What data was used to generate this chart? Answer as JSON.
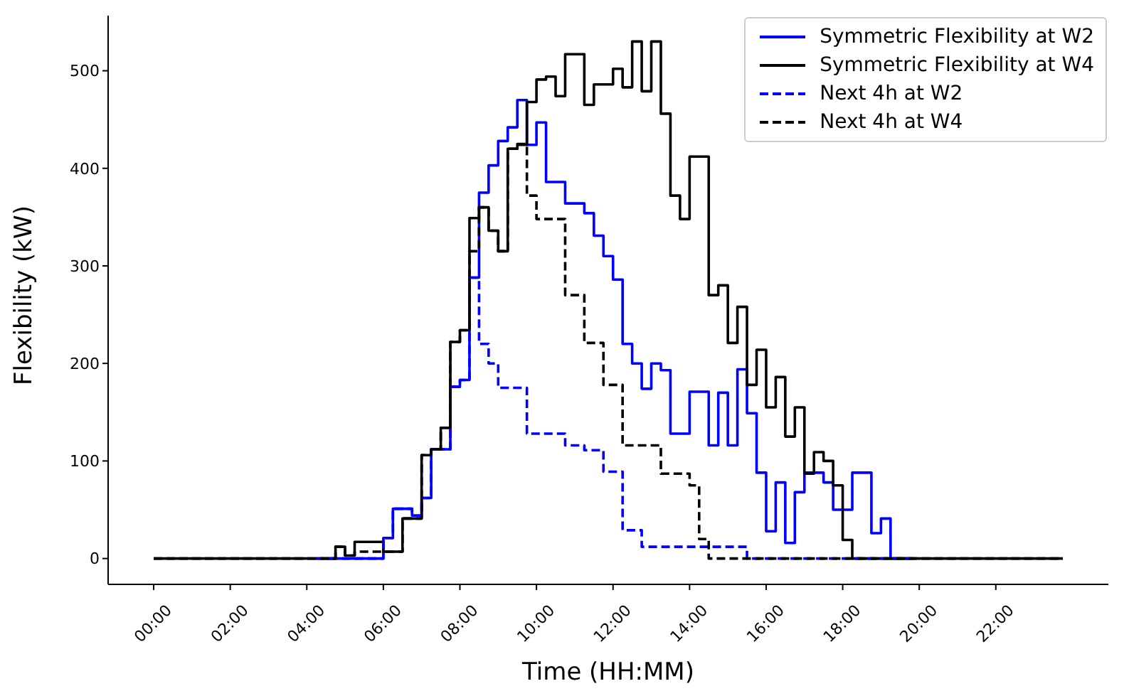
{
  "chart_data": {
    "type": "step",
    "xlabel": "Time (HH:MM)",
    "ylabel": "Flexibility (kW)",
    "x": [
      0,
      0.25,
      0.5,
      0.75,
      1,
      1.25,
      1.5,
      1.75,
      2,
      2.25,
      2.5,
      2.75,
      3,
      3.25,
      3.5,
      3.75,
      4,
      4.25,
      4.5,
      4.75,
      5,
      5.25,
      5.5,
      5.75,
      6,
      6.25,
      6.5,
      6.75,
      7,
      7.25,
      7.5,
      7.75,
      8,
      8.25,
      8.5,
      8.75,
      9,
      9.25,
      9.5,
      9.75,
      10,
      10.25,
      10.5,
      10.75,
      11,
      11.25,
      11.5,
      11.75,
      12,
      12.25,
      12.5,
      12.75,
      13,
      13.25,
      13.5,
      13.75,
      14,
      14.25,
      14.5,
      14.75,
      15,
      15.25,
      15.5,
      15.75,
      16,
      16.25,
      16.5,
      16.75,
      17,
      17.25,
      17.5,
      17.75,
      18,
      18.25,
      18.5,
      18.75,
      19,
      19.25,
      19.5,
      19.75,
      20,
      20.25,
      20.5,
      20.75,
      21,
      21.25,
      21.5,
      21.75,
      22,
      22.25,
      22.5,
      22.75,
      23,
      23.25,
      23.5,
      23.75
    ],
    "series": [
      {
        "name": "Symmetric Flexibility at W2",
        "color": "#0000ff",
        "line_style": "solid",
        "values": [
          null,
          null,
          null,
          null,
          null,
          null,
          null,
          null,
          null,
          null,
          null,
          null,
          null,
          null,
          null,
          null,
          null,
          null,
          0,
          0,
          0,
          0,
          0,
          0,
          21,
          51,
          51,
          44,
          62,
          112,
          112,
          176,
          183,
          288,
          375,
          403,
          428,
          442,
          470,
          424,
          447,
          386,
          386,
          364,
          364,
          354,
          331,
          310,
          286,
          220,
          200,
          174,
          200,
          193,
          128,
          128,
          171,
          171,
          116,
          170,
          116,
          194,
          149,
          88,
          28,
          78,
          16,
          68,
          88,
          88,
          78,
          50,
          50,
          88,
          88,
          26,
          41,
          0,
          0,
          0,
          null,
          null,
          null,
          null,
          null,
          null,
          null,
          null,
          null,
          null,
          null,
          null,
          null,
          null,
          null,
          null
        ]
      },
      {
        "name": "Symmetric Flexibility at W4",
        "color": "#000000",
        "line_style": "solid",
        "values": [
          0,
          0,
          0,
          0,
          0,
          0,
          0,
          0,
          0,
          0,
          0,
          0,
          0,
          0,
          0,
          0,
          0,
          0,
          0,
          12,
          3,
          17,
          17,
          17,
          7,
          7,
          41,
          41,
          106,
          112,
          134,
          222,
          234,
          349,
          360,
          336,
          315,
          420,
          424,
          468,
          491,
          494,
          474,
          517,
          517,
          465,
          486,
          486,
          502,
          483,
          530,
          479,
          530,
          456,
          372,
          348,
          412,
          412,
          270,
          280,
          221,
          258,
          178,
          214,
          155,
          186,
          125,
          155,
          87,
          109,
          100,
          75,
          19,
          0,
          0,
          0,
          0,
          0,
          0,
          0,
          0,
          0,
          0,
          0,
          0,
          0,
          0,
          0,
          0,
          0,
          0,
          0,
          0,
          0,
          0,
          0
        ]
      },
      {
        "name": "Next 4h at W2",
        "color": "#0000ff",
        "line_style": "dashed",
        "values": [
          null,
          null,
          null,
          null,
          null,
          null,
          null,
          null,
          null,
          null,
          null,
          null,
          null,
          null,
          null,
          null,
          null,
          0,
          0,
          0,
          0,
          0,
          0,
          0,
          21,
          51,
          51,
          44,
          62,
          112,
          112,
          176,
          183,
          288,
          220,
          200,
          175,
          175,
          175,
          128,
          128,
          128,
          128,
          116,
          116,
          111,
          111,
          89,
          89,
          29,
          29,
          12,
          12,
          12,
          12,
          12,
          12,
          12,
          12,
          12,
          12,
          12,
          0,
          0,
          0,
          0,
          0,
          0,
          0,
          0,
          0,
          0,
          0,
          0,
          0,
          0,
          0,
          0,
          0,
          0,
          0,
          null,
          null,
          null,
          null,
          null,
          null,
          null,
          null,
          null,
          null,
          null,
          null,
          null,
          null,
          null
        ]
      },
      {
        "name": "Next 4h at W4",
        "color": "#000000",
        "line_style": "dashed",
        "values": [
          0,
          0,
          0,
          0,
          0,
          0,
          0,
          0,
          0,
          0,
          0,
          0,
          0,
          0,
          0,
          0,
          0,
          0,
          0,
          12,
          3,
          7,
          7,
          7,
          7,
          7,
          41,
          41,
          106,
          112,
          134,
          222,
          234,
          315,
          360,
          336,
          315,
          420,
          425,
          372,
          348,
          348,
          348,
          270,
          270,
          221,
          221,
          178,
          178,
          116,
          116,
          116,
          116,
          87,
          87,
          87,
          75,
          20,
          0,
          0,
          0,
          0,
          0,
          0,
          0,
          0,
          0,
          0,
          0,
          0,
          0,
          0,
          0,
          0,
          0,
          0,
          0,
          0,
          0,
          0,
          0,
          0,
          0,
          0,
          0,
          0,
          0,
          0,
          0,
          0,
          0,
          0,
          0,
          0,
          0,
          0
        ]
      }
    ],
    "xlim": [
      -1.19,
      24.94
    ],
    "xticks": [
      {
        "value": 0,
        "label": "00:00"
      },
      {
        "value": 2,
        "label": "02:00"
      },
      {
        "value": 4,
        "label": "04:00"
      },
      {
        "value": 6,
        "label": "06:00"
      },
      {
        "value": 8,
        "label": "08:00"
      },
      {
        "value": 10,
        "label": "10:00"
      },
      {
        "value": 12,
        "label": "12:00"
      },
      {
        "value": 14,
        "label": "14:00"
      },
      {
        "value": 16,
        "label": "16:00"
      },
      {
        "value": 18,
        "label": "18:00"
      },
      {
        "value": 20,
        "label": "20:00"
      },
      {
        "value": 22,
        "label": "22:00"
      }
    ],
    "ylim": [
      -26.5,
      556.5
    ],
    "yticks": [
      0,
      100,
      200,
      300,
      400,
      500
    ],
    "legend": "top right"
  }
}
